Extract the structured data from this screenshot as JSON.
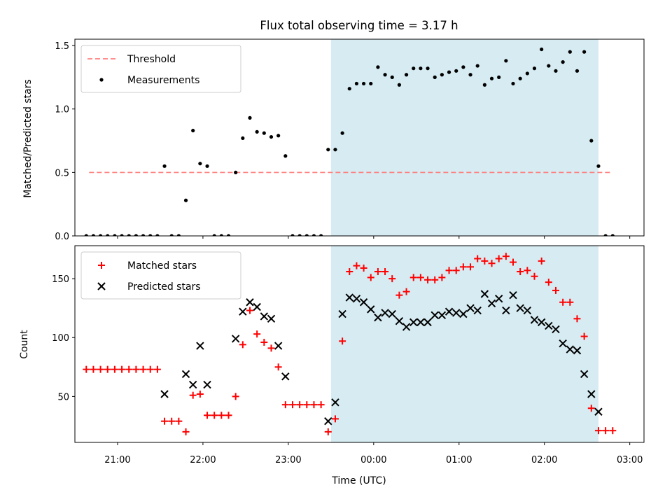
{
  "chart_data": [
    {
      "type": "scatter",
      "title": "Flux total observing time = 3.17 h",
      "xlabel": "",
      "ylabel": "Matched/Predicted stars",
      "ylim": [
        0,
        1.55
      ],
      "yticks": [
        "0.0",
        "0.5",
        "1.0",
        "1.5"
      ],
      "xlim": [
        "20:30",
        "03:10"
      ],
      "grid": false,
      "legend_position": "top-left",
      "shaded_span": {
        "x": [
          "23:30",
          "02:38"
        ],
        "color": "#add8e6"
      },
      "threshold": {
        "name": "Threshold",
        "y": 0.5,
        "x": [
          "20:40",
          "02:48"
        ],
        "color": "#ff7f7f",
        "style": "dashed"
      },
      "series": [
        {
          "name": "Measurements",
          "color": "#000000",
          "points": [
            [
              "20:38",
              0
            ],
            [
              "20:43",
              0
            ],
            [
              "20:48",
              0
            ],
            [
              "20:53",
              0
            ],
            [
              "20:58",
              0
            ],
            [
              "21:03",
              0
            ],
            [
              "21:08",
              0
            ],
            [
              "21:13",
              0
            ],
            [
              "21:18",
              0
            ],
            [
              "21:23",
              0
            ],
            [
              "21:28",
              0
            ],
            [
              "21:33",
              0.55
            ],
            [
              "21:38",
              0
            ],
            [
              "21:43",
              0
            ],
            [
              "21:48",
              0.28
            ],
            [
              "21:53",
              0.83
            ],
            [
              "21:58",
              0.57
            ],
            [
              "22:03",
              0.55
            ],
            [
              "22:08",
              0
            ],
            [
              "22:13",
              0
            ],
            [
              "22:18",
              0
            ],
            [
              "22:23",
              0.5
            ],
            [
              "22:28",
              0.77
            ],
            [
              "22:33",
              0.93
            ],
            [
              "22:38",
              0.82
            ],
            [
              "22:43",
              0.81
            ],
            [
              "22:48",
              0.78
            ],
            [
              "22:53",
              0.79
            ],
            [
              "22:58",
              0.63
            ],
            [
              "23:03",
              0
            ],
            [
              "23:08",
              0
            ],
            [
              "23:13",
              0
            ],
            [
              "23:18",
              0
            ],
            [
              "23:23",
              0
            ],
            [
              "23:28",
              0.68
            ],
            [
              "23:33",
              0.68
            ],
            [
              "23:38",
              0.81
            ],
            [
              "23:43",
              1.16
            ],
            [
              "23:48",
              1.2
            ],
            [
              "23:53",
              1.2
            ],
            [
              "23:58",
              1.2
            ],
            [
              "00:03",
              1.33
            ],
            [
              "00:08",
              1.27
            ],
            [
              "00:13",
              1.25
            ],
            [
              "00:18",
              1.19
            ],
            [
              "00:23",
              1.27
            ],
            [
              "00:28",
              1.32
            ],
            [
              "00:33",
              1.32
            ],
            [
              "00:38",
              1.32
            ],
            [
              "00:43",
              1.25
            ],
            [
              "00:48",
              1.27
            ],
            [
              "00:53",
              1.29
            ],
            [
              "00:58",
              1.3
            ],
            [
              "01:03",
              1.33
            ],
            [
              "01:08",
              1.27
            ],
            [
              "01:13",
              1.34
            ],
            [
              "01:18",
              1.19
            ],
            [
              "01:23",
              1.24
            ],
            [
              "01:28",
              1.25
            ],
            [
              "01:33",
              1.38
            ],
            [
              "01:38",
              1.2
            ],
            [
              "01:43",
              1.24
            ],
            [
              "01:48",
              1.28
            ],
            [
              "01:53",
              1.32
            ],
            [
              "01:58",
              1.47
            ],
            [
              "02:03",
              1.34
            ],
            [
              "02:08",
              1.3
            ],
            [
              "02:13",
              1.37
            ],
            [
              "02:18",
              1.45
            ],
            [
              "02:23",
              1.3
            ],
            [
              "02:28",
              1.45
            ],
            [
              "02:33",
              0.75
            ],
            [
              "02:38",
              0.55
            ],
            [
              "02:43",
              0
            ],
            [
              "02:48",
              0
            ]
          ]
        }
      ]
    },
    {
      "type": "scatter",
      "title": "",
      "xlabel": "Time (UTC)",
      "ylabel": "Count",
      "ylim": [
        11,
        178
      ],
      "yticks": [
        "50",
        "100",
        "150"
      ],
      "xlim": [
        "20:30",
        "03:10"
      ],
      "xticks": [
        "21:00",
        "22:00",
        "23:00",
        "00:00",
        "01:00",
        "02:00",
        "03:00"
      ],
      "grid": false,
      "legend_position": "top-left",
      "shaded_span": {
        "x": [
          "23:30",
          "02:38"
        ],
        "color": "#add8e6"
      },
      "series": [
        {
          "name": "Matched stars",
          "marker": "plus",
          "color": "#ff0000",
          "points": [
            [
              "20:38",
              73
            ],
            [
              "20:43",
              73
            ],
            [
              "20:48",
              73
            ],
            [
              "20:53",
              73
            ],
            [
              "20:58",
              73
            ],
            [
              "21:03",
              73
            ],
            [
              "21:08",
              73
            ],
            [
              "21:13",
              73
            ],
            [
              "21:18",
              73
            ],
            [
              "21:23",
              73
            ],
            [
              "21:28",
              73
            ],
            [
              "21:33",
              29
            ],
            [
              "21:38",
              29
            ],
            [
              "21:43",
              29
            ],
            [
              "21:48",
              20
            ],
            [
              "21:53",
              51
            ],
            [
              "21:58",
              52
            ],
            [
              "22:03",
              34
            ],
            [
              "22:08",
              34
            ],
            [
              "22:13",
              34
            ],
            [
              "22:18",
              34
            ],
            [
              "22:23",
              50
            ],
            [
              "22:28",
              94
            ],
            [
              "22:33",
              123
            ],
            [
              "22:38",
              103
            ],
            [
              "22:43",
              96
            ],
            [
              "22:48",
              91
            ],
            [
              "22:53",
              75
            ],
            [
              "22:58",
              43
            ],
            [
              "23:03",
              43
            ],
            [
              "23:08",
              43
            ],
            [
              "23:13",
              43
            ],
            [
              "23:18",
              43
            ],
            [
              "23:23",
              43
            ],
            [
              "23:28",
              20
            ],
            [
              "23:33",
              31
            ],
            [
              "23:38",
              97
            ],
            [
              "23:43",
              156
            ],
            [
              "23:48",
              161
            ],
            [
              "23:53",
              159
            ],
            [
              "23:58",
              151
            ],
            [
              "00:03",
              156
            ],
            [
              "00:08",
              156
            ],
            [
              "00:13",
              150
            ],
            [
              "00:18",
              136
            ],
            [
              "00:23",
              139
            ],
            [
              "00:28",
              151
            ],
            [
              "00:33",
              151
            ],
            [
              "00:38",
              149
            ],
            [
              "00:43",
              149
            ],
            [
              "00:48",
              151
            ],
            [
              "00:53",
              157
            ],
            [
              "00:58",
              157
            ],
            [
              "01:03",
              160
            ],
            [
              "01:08",
              160
            ],
            [
              "01:13",
              167
            ],
            [
              "01:18",
              165
            ],
            [
              "01:23",
              163
            ],
            [
              "01:28",
              167
            ],
            [
              "01:33",
              169
            ],
            [
              "01:38",
              164
            ],
            [
              "01:43",
              156
            ],
            [
              "01:48",
              157
            ],
            [
              "01:53",
              152
            ],
            [
              "01:58",
              165
            ],
            [
              "02:03",
              147
            ],
            [
              "02:08",
              140
            ],
            [
              "02:13",
              130
            ],
            [
              "02:18",
              130
            ],
            [
              "02:23",
              116
            ],
            [
              "02:28",
              101
            ],
            [
              "02:33",
              40
            ],
            [
              "02:38",
              21
            ],
            [
              "02:43",
              21
            ],
            [
              "02:48",
              21
            ]
          ]
        },
        {
          "name": "Predicted stars",
          "marker": "x",
          "color": "#000000",
          "points": [
            [
              "21:33",
              52
            ],
            [
              "21:48",
              69
            ],
            [
              "21:53",
              60
            ],
            [
              "21:58",
              93
            ],
            [
              "22:03",
              60
            ],
            [
              "22:23",
              99
            ],
            [
              "22:28",
              122
            ],
            [
              "22:33",
              130
            ],
            [
              "22:38",
              126
            ],
            [
              "22:43",
              118
            ],
            [
              "22:48",
              116
            ],
            [
              "22:53",
              93
            ],
            [
              "22:58",
              67
            ],
            [
              "23:28",
              29
            ],
            [
              "23:33",
              45
            ],
            [
              "23:38",
              120
            ],
            [
              "23:43",
              134
            ],
            [
              "23:48",
              133
            ],
            [
              "23:53",
              130
            ],
            [
              "23:58",
              124
            ],
            [
              "00:03",
              117
            ],
            [
              "00:08",
              121
            ],
            [
              "00:13",
              120
            ],
            [
              "00:18",
              114
            ],
            [
              "00:23",
              109
            ],
            [
              "00:28",
              113
            ],
            [
              "00:33",
              113
            ],
            [
              "00:38",
              113
            ],
            [
              "00:43",
              119
            ],
            [
              "00:48",
              119
            ],
            [
              "00:53",
              122
            ],
            [
              "00:58",
              121
            ],
            [
              "01:03",
              120
            ],
            [
              "01:08",
              125
            ],
            [
              "01:13",
              123
            ],
            [
              "01:18",
              137
            ],
            [
              "01:23",
              129
            ],
            [
              "01:28",
              133
            ],
            [
              "01:33",
              123
            ],
            [
              "01:38",
              136
            ],
            [
              "01:43",
              125
            ],
            [
              "01:48",
              123
            ],
            [
              "01:53",
              115
            ],
            [
              "01:58",
              113
            ],
            [
              "02:03",
              110
            ],
            [
              "02:08",
              107
            ],
            [
              "02:13",
              95
            ],
            [
              "02:18",
              90
            ],
            [
              "02:23",
              89
            ],
            [
              "02:28",
              69
            ],
            [
              "02:33",
              52
            ],
            [
              "02:38",
              37
            ]
          ]
        }
      ]
    }
  ]
}
